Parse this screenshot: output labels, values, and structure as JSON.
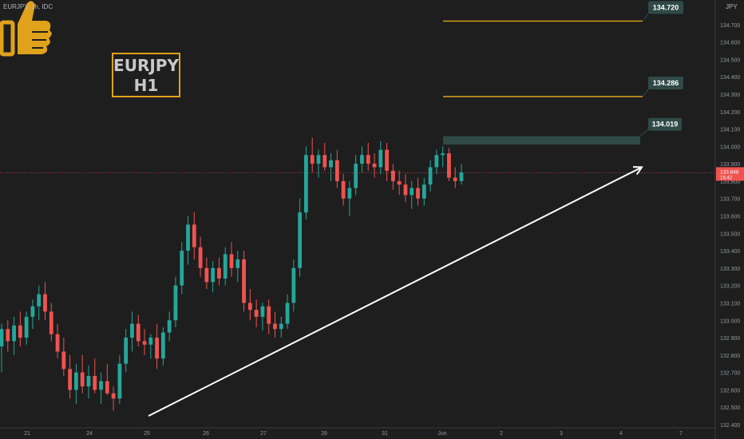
{
  "header": {
    "symbol_line": "EURJPY, 1h, IDC",
    "currency": "JPY"
  },
  "title_box": {
    "line1": "EURJPY",
    "line2": "H1",
    "border_color": "#e0a21b"
  },
  "colors": {
    "up": "#26a69a",
    "down": "#ef5350",
    "level": "#e0a21b",
    "zone": "#2f4a47",
    "arrow": "#ffffff",
    "price_tag": "#ef5350",
    "icon": "#e0a21b"
  },
  "icon": "thumbs-up-icon",
  "chart_data": {
    "type": "candlestick",
    "ylim": [
      132.4,
      134.8
    ],
    "y_ticks": [
      "134.700",
      "134.600",
      "134.500",
      "134.400",
      "134.300",
      "134.200",
      "134.100",
      "134.000",
      "133.900",
      "133.800",
      "133.700",
      "133.600",
      "133.500",
      "133.400",
      "133.300",
      "133.200",
      "133.100",
      "133.000",
      "132.900",
      "132.800",
      "132.700",
      "132.600",
      "132.500",
      "132.400"
    ],
    "x_ticks": [
      "21",
      "24",
      "25",
      "26",
      "27",
      "28",
      "31",
      "Jun",
      "2",
      "3",
      "4",
      "7"
    ],
    "levels": [
      {
        "label": "134.720",
        "value": 134.72
      },
      {
        "label": "134.286",
        "value": 134.286
      }
    ],
    "zone": {
      "label": "134.019",
      "low": 134.01,
      "high": 134.058
    },
    "current_price": {
      "label": "133.848",
      "sublabel": "15:42",
      "value": 133.848
    },
    "trend_arrow": {
      "from": {
        "x": "25",
        "y": 132.45
      },
      "to": {
        "x": "4",
        "y": 133.88
      }
    },
    "candles": [
      [
        132.85,
        132.98,
        132.7,
        132.95
      ],
      [
        132.95,
        133.0,
        132.82,
        132.88
      ],
      [
        132.88,
        133.02,
        132.8,
        132.97
      ],
      [
        132.97,
        133.05,
        132.85,
        132.9
      ],
      [
        132.9,
        133.05,
        132.86,
        133.02
      ],
      [
        133.02,
        133.12,
        132.95,
        133.08
      ],
      [
        133.08,
        133.2,
        133.0,
        133.15
      ],
      [
        133.15,
        133.22,
        133.0,
        133.05
      ],
      [
        133.05,
        133.1,
        132.88,
        132.92
      ],
      [
        132.92,
        132.98,
        132.78,
        132.82
      ],
      [
        132.82,
        132.9,
        132.68,
        132.72
      ],
      [
        132.72,
        132.8,
        132.55,
        132.6
      ],
      [
        132.6,
        132.75,
        132.52,
        132.7
      ],
      [
        132.7,
        132.8,
        132.58,
        132.62
      ],
      [
        132.62,
        132.74,
        132.55,
        132.68
      ],
      [
        132.68,
        132.78,
        132.58,
        132.6
      ],
      [
        132.6,
        132.7,
        132.52,
        132.65
      ],
      [
        132.65,
        132.75,
        132.57,
        132.58
      ],
      [
        132.58,
        132.62,
        132.48,
        132.55
      ],
      [
        132.55,
        132.8,
        132.52,
        132.75
      ],
      [
        132.75,
        132.95,
        132.7,
        132.9
      ],
      [
        132.9,
        133.05,
        132.82,
        132.98
      ],
      [
        132.98,
        133.03,
        132.85,
        132.88
      ],
      [
        132.88,
        132.95,
        132.8,
        132.86
      ],
      [
        132.86,
        132.92,
        132.78,
        132.9
      ],
      [
        132.9,
        132.98,
        132.72,
        132.78
      ],
      [
        132.78,
        132.96,
        132.74,
        132.93
      ],
      [
        132.93,
        133.05,
        132.88,
        133.0
      ],
      [
        133.0,
        133.25,
        132.96,
        133.2
      ],
      [
        133.2,
        133.45,
        133.15,
        133.4
      ],
      [
        133.4,
        133.6,
        133.32,
        133.55
      ],
      [
        133.55,
        133.62,
        133.35,
        133.42
      ],
      [
        133.42,
        133.48,
        133.25,
        133.3
      ],
      [
        133.3,
        133.36,
        133.18,
        133.22
      ],
      [
        133.22,
        133.34,
        133.16,
        133.3
      ],
      [
        133.3,
        133.36,
        133.2,
        133.24
      ],
      [
        133.24,
        133.42,
        133.2,
        133.38
      ],
      [
        133.38,
        133.45,
        133.25,
        133.3
      ],
      [
        133.3,
        133.4,
        133.22,
        133.35
      ],
      [
        133.35,
        133.4,
        133.05,
        133.1
      ],
      [
        133.1,
        133.18,
        133.0,
        133.06
      ],
      [
        133.06,
        133.12,
        132.96,
        133.02
      ],
      [
        133.02,
        133.1,
        132.94,
        133.08
      ],
      [
        133.08,
        133.12,
        132.92,
        132.98
      ],
      [
        132.98,
        133.05,
        132.9,
        132.95
      ],
      [
        132.95,
        133.02,
        132.9,
        132.98
      ],
      [
        132.98,
        133.15,
        132.95,
        133.1
      ],
      [
        133.1,
        133.35,
        133.05,
        133.3
      ],
      [
        133.3,
        133.7,
        133.25,
        133.62
      ],
      [
        133.62,
        134.0,
        133.58,
        133.95
      ],
      [
        133.95,
        134.05,
        133.85,
        133.9
      ],
      [
        133.9,
        133.98,
        133.82,
        133.95
      ],
      [
        133.95,
        134.02,
        133.86,
        133.88
      ],
      [
        133.88,
        133.96,
        133.8,
        133.92
      ],
      [
        133.92,
        133.98,
        133.76,
        133.8
      ],
      [
        133.8,
        133.84,
        133.66,
        133.7
      ],
      [
        133.7,
        133.8,
        133.6,
        133.76
      ],
      [
        133.76,
        133.95,
        133.72,
        133.9
      ],
      [
        133.9,
        134.0,
        133.85,
        133.95
      ],
      [
        133.95,
        134.02,
        133.86,
        133.9
      ],
      [
        133.9,
        133.96,
        133.82,
        133.88
      ],
      [
        133.88,
        134.03,
        133.84,
        133.98
      ],
      [
        133.98,
        134.02,
        133.8,
        133.86
      ],
      [
        133.86,
        133.9,
        133.75,
        133.8
      ],
      [
        133.8,
        133.86,
        133.72,
        133.78
      ],
      [
        133.78,
        133.84,
        133.68,
        133.72
      ],
      [
        133.72,
        133.8,
        133.64,
        133.76
      ],
      [
        133.76,
        133.82,
        133.66,
        133.7
      ],
      [
        133.7,
        133.82,
        133.66,
        133.78
      ],
      [
        133.78,
        133.92,
        133.74,
        133.88
      ],
      [
        133.88,
        133.98,
        133.84,
        133.95
      ],
      [
        133.95,
        134.0,
        133.88,
        133.96
      ],
      [
        133.96,
        133.99,
        133.8,
        133.82
      ],
      [
        133.82,
        133.88,
        133.76,
        133.8
      ],
      [
        133.8,
        133.9,
        133.78,
        133.85
      ]
    ]
  }
}
